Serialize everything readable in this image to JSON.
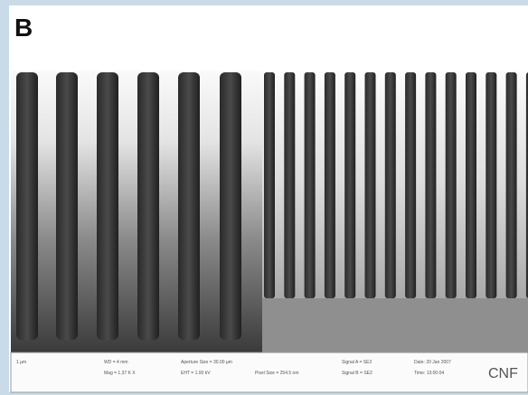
{
  "panel_label": "B",
  "footer": {
    "scale": "1 µm",
    "fields": [
      "WD = 4 mm",
      "Mag = 1.37 K X",
      "Aperture Size = 30.00 µm",
      "EHT = 1.00 kV",
      "Pixel Size = 254.5 nm",
      "Signal A = SE2",
      "Signal B = SE2",
      "Date: 20 Jan 2007",
      "Time: 13:00:04"
    ],
    "logo": "CNF"
  }
}
